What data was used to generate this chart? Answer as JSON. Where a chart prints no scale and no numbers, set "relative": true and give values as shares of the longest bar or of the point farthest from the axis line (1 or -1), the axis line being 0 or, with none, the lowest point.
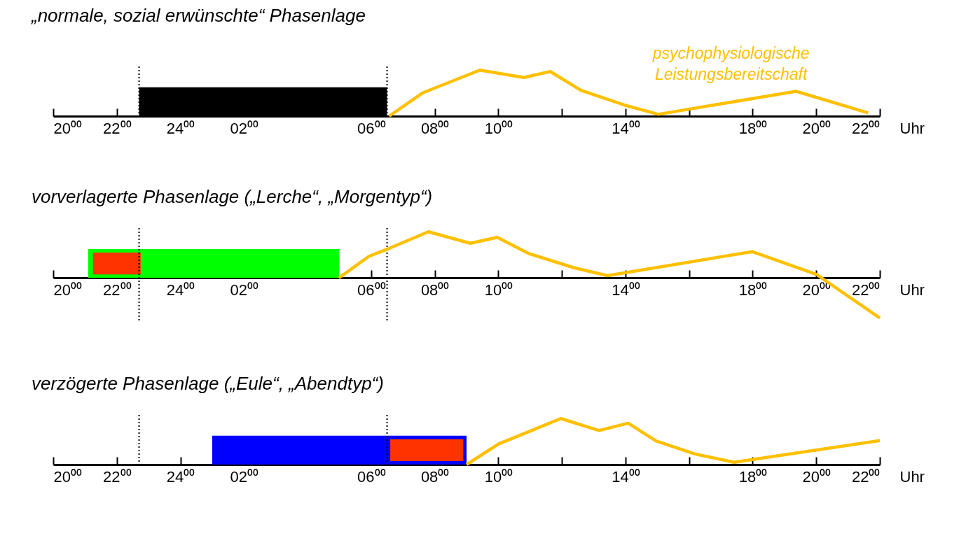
{
  "chart_data": [
    {
      "type": "line",
      "title": "„normale, sozial erwünschte“ Phasenlage",
      "xlabel": "Uhr",
      "relative": true,
      "legend": false,
      "x": [
        "--01-02T06:34",
        "--01-02T07:38",
        "--01-02T09:25",
        "--01-02T10:48",
        "--01-02T11:38",
        "--01-02T12:36",
        "--01-02T13:58",
        "--01-02T15:02",
        "--01-02T19:22",
        "--01-02T21:38"
      ],
      "series": [
        {
          "name": "psychophysiologische Leistungsbereitschaft",
          "color": "#ffc000",
          "values": [
            0,
            0.51,
            1,
            0.84,
            0.97,
            0.56,
            0.24,
            0.04,
            0.54,
            0.07
          ]
        }
      ],
      "xlim": [
        "--01-01T20:00",
        "--01-02T22:00"
      ],
      "xticks": [
        {
          "value": "--01-01T20:00",
          "label": "20⁰⁰"
        },
        {
          "value": "--01-01T22:00",
          "label": "22⁰⁰"
        },
        {
          "value": "--01-02T00:00",
          "label": "24⁰⁰"
        },
        {
          "value": "--01-02T02:00",
          "label": "02⁰⁰"
        },
        {
          "value": "--01-02T04:00",
          "label": null
        },
        {
          "value": "--01-02T06:00",
          "label": "06⁰⁰"
        },
        {
          "value": "--01-02T08:00",
          "label": "08⁰⁰"
        },
        {
          "value": "--01-02T10:00",
          "label": "10⁰⁰"
        },
        {
          "value": "--01-02T12:00",
          "label": null
        },
        {
          "value": "--01-02T14:00",
          "label": "14⁰⁰"
        },
        {
          "value": "--01-02T16:00",
          "label": null
        },
        {
          "value": "--01-02T18:00",
          "label": "18⁰⁰"
        },
        {
          "value": "--01-02T20:00",
          "label": "20⁰⁰"
        },
        {
          "value": "--01-02T22:00",
          "label": "22⁰⁰"
        }
      ],
      "bands": [
        {
          "axis": "x",
          "from": "--01-01T22:42",
          "to": "--01-02T06:30",
          "color": "#000000"
        }
      ],
      "ref_lines": [
        {
          "axis": "x",
          "value": "--01-01T22:42",
          "color": "#000000",
          "line_style": "dotted"
        },
        {
          "axis": "x",
          "value": "--01-02T06:30",
          "color": "#000000",
          "line_style": "dotted"
        }
      ]
    },
    {
      "type": "line",
      "title": "vorverlagerte Phasenlage („Lerche“, „Morgentyp“)",
      "xlabel": "Uhr",
      "relative": true,
      "legend": false,
      "x": [
        "--01-02T04:59",
        "--01-02T05:56",
        "--01-02T06:34",
        "--01-02T07:48",
        "--01-02T09:07",
        "--01-02T09:58",
        "--01-02T10:57",
        "--01-02T12:23",
        "--01-02T13:26",
        "--01-02T17:59",
        "--01-02T20:00",
        "--01-02T22:00"
      ],
      "series": [
        {
          "color": "#ffc000",
          "values": [
            0,
            0.47,
            0.64,
            1,
            0.75,
            0.88,
            0.53,
            0.22,
            0.05,
            0.57,
            0.08,
            -0.87
          ]
        }
      ],
      "xlim": [
        "--01-01T20:00",
        "--01-02T22:00"
      ],
      "xticks": [
        {
          "value": "--01-01T20:00",
          "label": "20⁰⁰"
        },
        {
          "value": "--01-01T22:00",
          "label": "22⁰⁰"
        },
        {
          "value": "--01-02T00:00",
          "label": "24⁰⁰"
        },
        {
          "value": "--01-02T02:00",
          "label": "02⁰⁰"
        },
        {
          "value": "--01-02T04:00",
          "label": null
        },
        {
          "value": "--01-02T06:00",
          "label": "06⁰⁰"
        },
        {
          "value": "--01-02T08:00",
          "label": "08⁰⁰"
        },
        {
          "value": "--01-02T10:00",
          "label": "10⁰⁰"
        },
        {
          "value": "--01-02T12:00",
          "label": null
        },
        {
          "value": "--01-02T14:00",
          "label": "14⁰⁰"
        },
        {
          "value": "--01-02T16:00",
          "label": null
        },
        {
          "value": "--01-02T18:00",
          "label": "18⁰⁰"
        },
        {
          "value": "--01-02T20:00",
          "label": "20⁰⁰"
        },
        {
          "value": "--01-02T22:00",
          "label": "22⁰⁰"
        }
      ],
      "bands": [
        {
          "axis": "x",
          "from": "--01-01T21:06",
          "to": "--01-02T05:00",
          "color": "#00ff00"
        },
        {
          "axis": "x",
          "from": "--01-01T21:15",
          "to": "--01-01T22:45",
          "color": "#ff3300"
        }
      ],
      "ref_lines": [
        {
          "axis": "x",
          "value": "--01-01T22:42",
          "color": "#000000",
          "line_style": "dotted"
        },
        {
          "axis": "x",
          "value": "--01-02T06:30",
          "color": "#000000",
          "line_style": "dotted"
        }
      ]
    },
    {
      "type": "line",
      "title": "verzögerte Phasenlage („Eule“, „Abendtyp“)",
      "xlabel": "Uhr",
      "relative": true,
      "legend": false,
      "x": [
        "--01-02T09:00",
        "--01-02T10:01",
        "--01-02T11:58",
        "--01-02T13:10",
        "--01-02T14:05",
        "--01-02T14:58",
        "--01-02T16:11",
        "--01-02T17:25",
        "--01-02T22:00"
      ],
      "series": [
        {
          "color": "#ffc000",
          "values": [
            0,
            0.45,
            1,
            0.74,
            0.9,
            0.51,
            0.23,
            0.05,
            0.52
          ]
        }
      ],
      "xlim": [
        "--01-01T20:00",
        "--01-02T22:00"
      ],
      "xticks": [
        {
          "value": "--01-01T20:00",
          "label": "20⁰⁰"
        },
        {
          "value": "--01-01T22:00",
          "label": "22⁰⁰"
        },
        {
          "value": "--01-02T00:00",
          "label": "24⁰⁰"
        },
        {
          "value": "--01-02T02:00",
          "label": "02⁰⁰"
        },
        {
          "value": "--01-02T04:00",
          "label": null
        },
        {
          "value": "--01-02T06:00",
          "label": "06⁰⁰"
        },
        {
          "value": "--01-02T08:00",
          "label": "08⁰⁰"
        },
        {
          "value": "--01-02T10:00",
          "label": "10⁰⁰"
        },
        {
          "value": "--01-02T12:00",
          "label": null
        },
        {
          "value": "--01-02T14:00",
          "label": "14⁰⁰"
        },
        {
          "value": "--01-02T16:00",
          "label": null
        },
        {
          "value": "--01-02T18:00",
          "label": "18⁰⁰"
        },
        {
          "value": "--01-02T20:00",
          "label": "20⁰⁰"
        },
        {
          "value": "--01-02T22:00",
          "label": "22⁰⁰"
        }
      ],
      "bands": [
        {
          "axis": "x",
          "from": "--01-02T01:00",
          "to": "--01-02T09:00",
          "color": "#0000ff"
        },
        {
          "axis": "x",
          "from": "--01-02T06:36",
          "to": "--01-02T08:54",
          "color": "#ff3300"
        }
      ],
      "ref_lines": [
        {
          "axis": "x",
          "value": "--01-01T22:42",
          "color": "#000000",
          "line_style": "dotted"
        },
        {
          "axis": "x",
          "value": "--01-02T06:30",
          "color": "#000000",
          "line_style": "dotted"
        }
      ]
    }
  ]
}
